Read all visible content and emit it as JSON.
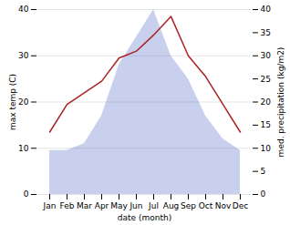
{
  "chart_data": {
    "type": "line",
    "x_label": "date (month)",
    "y_label": "max temp (C)",
    "y2_label": "med. precipitation (kg/m2)",
    "categories": [
      "Jan",
      "Feb",
      "Mar",
      "Apr",
      "May",
      "Jun",
      "Jul",
      "Aug",
      "Sep",
      "Oct",
      "Nov",
      "Dec"
    ],
    "series": [
      {
        "type": "area",
        "axis": "y2",
        "color": "#c8d0ee",
        "values": [
          9.5,
          9.5,
          11.0,
          17.0,
          28.0,
          34.0,
          40.0,
          30.0,
          25.0,
          17.0,
          12.0,
          9.5
        ]
      },
      {
        "type": "line",
        "color": "#aa2222",
        "values": [
          13.5,
          19.5,
          22.0,
          24.5,
          29.5,
          31.0,
          34.5,
          38.5,
          30.0,
          25.5,
          19.5,
          13.5
        ]
      }
    ],
    "ylim": [
      0,
      40
    ],
    "yticks": [
      0,
      10,
      20,
      30,
      40
    ],
    "y2lim": [
      0,
      40
    ],
    "y2ticks": [
      0,
      5,
      10,
      15,
      20,
      25,
      30,
      35,
      40
    ],
    "grid": true
  }
}
